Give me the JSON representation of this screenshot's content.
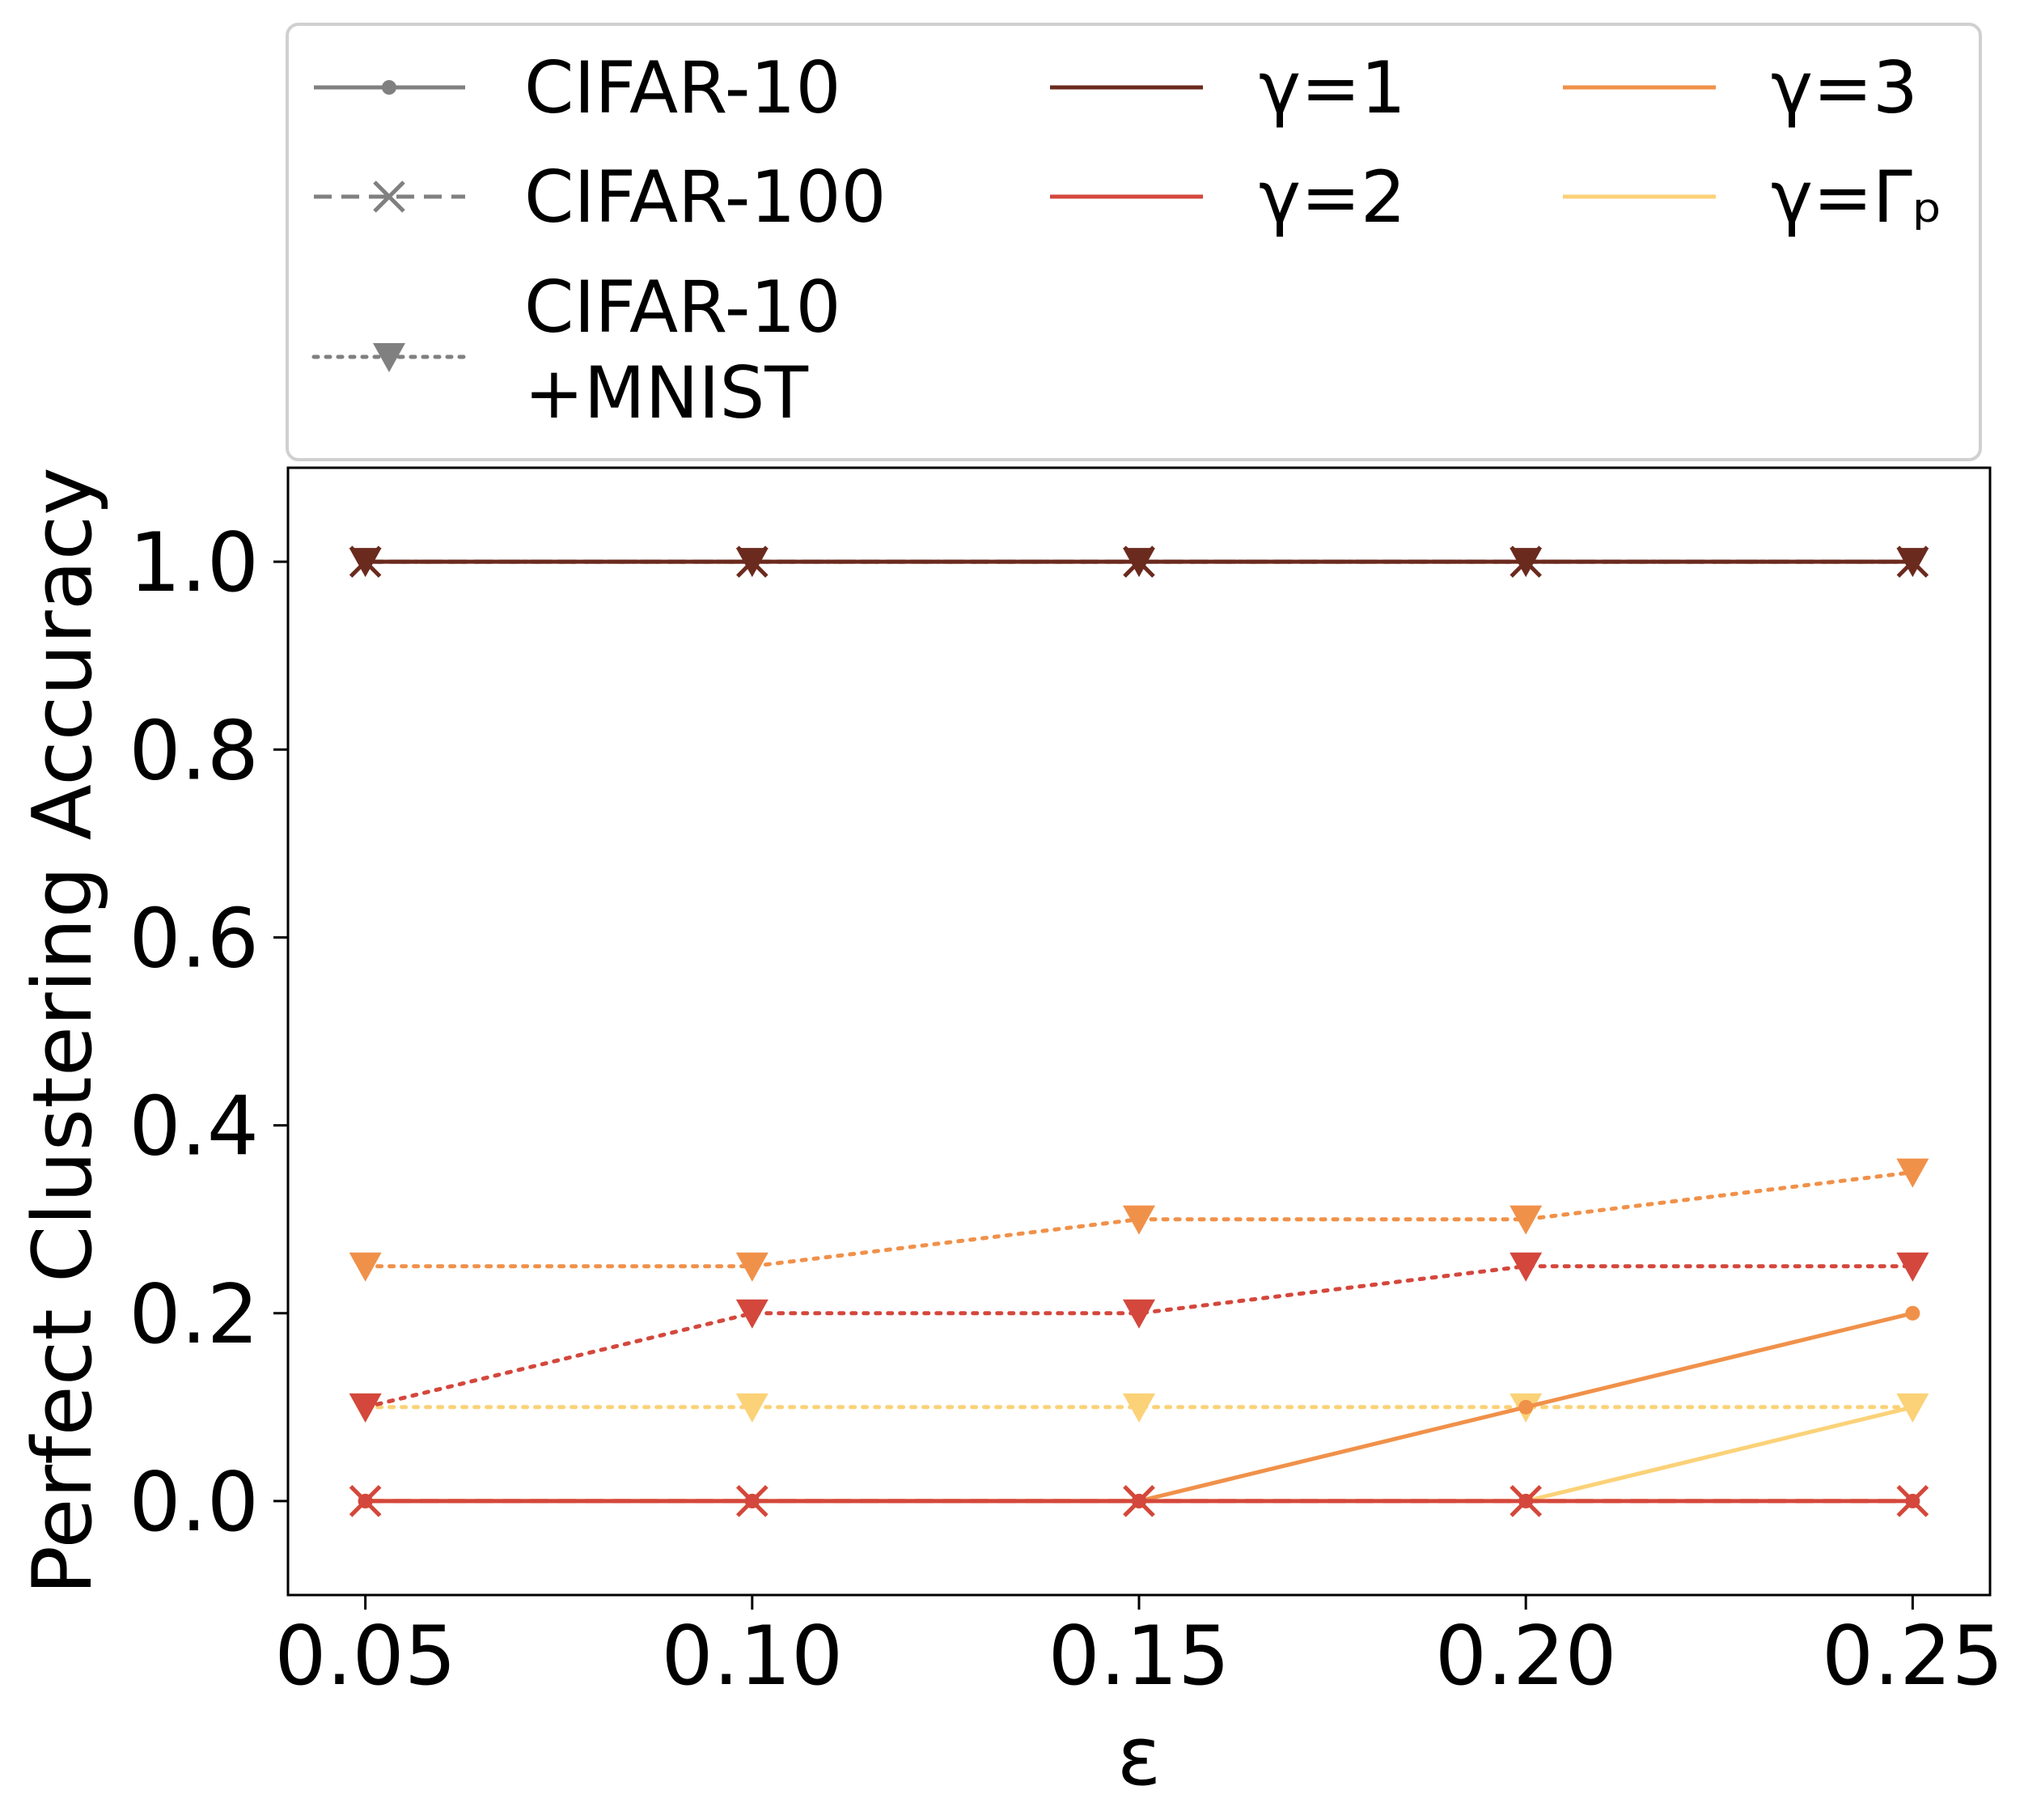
{
  "chart_data": {
    "type": "line",
    "title": "",
    "xlabel": "ε",
    "ylabel": "Perfect Clustering Accuracy",
    "x": [
      0.05,
      0.1,
      0.15,
      0.2,
      0.25
    ],
    "x_tick_labels": [
      "0.05",
      "0.10",
      "0.15",
      "0.20",
      "0.25"
    ],
    "y_ticks": [
      0.0,
      0.2,
      0.4,
      0.6,
      0.8,
      1.0
    ],
    "y_tick_labels": [
      "0.0",
      "0.2",
      "0.4",
      "0.6",
      "0.8",
      "1.0"
    ],
    "xlim": [
      0.04,
      0.26
    ],
    "ylim": [
      -0.1,
      1.1
    ],
    "grid": false,
    "legend_position": "top, outside plot",
    "gamma_colors": {
      "γ=1": "#6b2a1e",
      "γ=2": "#d4473c",
      "γ=3": "#f0914a",
      "γ=Γₚ": "#fbd278"
    },
    "style_color": "#808080",
    "legend": {
      "datasets": [
        {
          "label": "CIFAR-10",
          "label2": "",
          "style": "solid",
          "marker": "circle"
        },
        {
          "label": "CIFAR-100",
          "label2": "",
          "style": "dashed",
          "marker": "x"
        },
        {
          "label": "CIFAR-10",
          "label2": "+MNIST",
          "style": "dotted",
          "marker": "triangle-down"
        }
      ],
      "gammas": [
        "γ=1",
        "γ=2",
        "γ=3",
        "γ=Γₚ"
      ]
    },
    "series": [
      {
        "name": "CIFAR-10, γ=1",
        "dataset": "CIFAR-10",
        "gamma": "γ=1",
        "values": [
          1.0,
          1.0,
          1.0,
          1.0,
          1.0
        ]
      },
      {
        "name": "CIFAR-10, γ=2",
        "dataset": "CIFAR-10",
        "gamma": "γ=2",
        "values": [
          0.0,
          0.0,
          0.0,
          0.0,
          0.0
        ]
      },
      {
        "name": "CIFAR-10, γ=3",
        "dataset": "CIFAR-10",
        "gamma": "γ=3",
        "values": [
          0.0,
          0.0,
          0.0,
          0.1,
          0.2
        ]
      },
      {
        "name": "CIFAR-10, γ=Γₚ",
        "dataset": "CIFAR-10",
        "gamma": "γ=Γₚ",
        "values": [
          0.0,
          0.0,
          0.0,
          0.0,
          0.1
        ]
      },
      {
        "name": "CIFAR-100, γ=1",
        "dataset": "CIFAR-100",
        "gamma": "γ=1",
        "values": [
          1.0,
          1.0,
          1.0,
          1.0,
          1.0
        ]
      },
      {
        "name": "CIFAR-100, γ=2",
        "dataset": "CIFAR-100",
        "gamma": "γ=2",
        "values": [
          0.0,
          0.0,
          0.0,
          0.0,
          0.0
        ]
      },
      {
        "name": "CIFAR-100, γ=3",
        "dataset": "CIFAR-100",
        "gamma": "γ=3",
        "values": [
          0.0,
          0.0,
          0.0,
          0.0,
          0.0
        ]
      },
      {
        "name": "CIFAR-100, γ=Γₚ",
        "dataset": "CIFAR-100",
        "gamma": "γ=Γₚ",
        "values": [
          0.0,
          0.0,
          0.0,
          0.0,
          0.0
        ]
      },
      {
        "name": "CIFAR-10+MNIST, γ=1",
        "dataset": "CIFAR-10+MNIST",
        "gamma": "γ=1",
        "values": [
          1.0,
          1.0,
          1.0,
          1.0,
          1.0
        ]
      },
      {
        "name": "CIFAR-10+MNIST, γ=2",
        "dataset": "CIFAR-10+MNIST",
        "gamma": "γ=2",
        "values": [
          0.1,
          0.2,
          0.2,
          0.25,
          0.25
        ]
      },
      {
        "name": "CIFAR-10+MNIST, γ=3",
        "dataset": "CIFAR-10+MNIST",
        "gamma": "γ=3",
        "values": [
          0.25,
          0.25,
          0.3,
          0.3,
          0.35
        ]
      },
      {
        "name": "CIFAR-10+MNIST, γ=Γₚ",
        "dataset": "CIFAR-10+MNIST",
        "gamma": "γ=Γₚ",
        "values": [
          0.1,
          0.1,
          0.1,
          0.1,
          0.1
        ]
      }
    ]
  }
}
